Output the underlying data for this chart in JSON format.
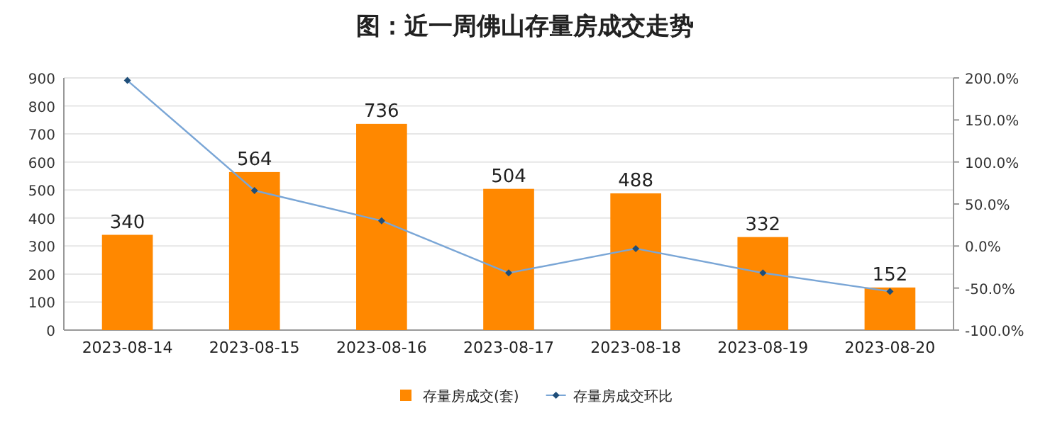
{
  "chart_data": {
    "type": "bar",
    "title": "图：近一周佛山存量房成交走势",
    "categories": [
      "2023-08-14",
      "2023-08-15",
      "2023-08-16",
      "2023-08-17",
      "2023-08-18",
      "2023-08-19",
      "2023-08-20"
    ],
    "series": [
      {
        "name": "存量房成交(套)",
        "color": "#ff8800",
        "values": [
          340,
          564,
          736,
          504,
          488,
          332,
          152
        ],
        "value_labels": [
          "340",
          "564",
          "736",
          "504",
          "488",
          "332",
          "152"
        ]
      },
      {
        "name": "存量房成交环比",
        "type": "line",
        "axis": "y2",
        "color": "#7aa6d6",
        "marker": "diamond",
        "values": [
          197,
          66,
          30,
          -32,
          -3,
          -32,
          -54
        ]
      }
    ],
    "ylim": [
      0,
      900
    ],
    "yticks": [
      0,
      100,
      200,
      300,
      400,
      500,
      600,
      700,
      800,
      900
    ],
    "y2lim": [
      -100,
      200
    ],
    "y2ticks": [
      {
        "value": -100,
        "label": "-100.0%"
      },
      {
        "value": -50,
        "label": "-50.0%"
      },
      {
        "value": 0,
        "label": "0.0%"
      },
      {
        "value": 50,
        "label": "50.0%"
      },
      {
        "value": 100,
        "label": "100.0%"
      },
      {
        "value": 150,
        "label": "150.0%"
      },
      {
        "value": 200,
        "label": "200.0%"
      }
    ],
    "grid": "y",
    "legend": "bottom"
  }
}
